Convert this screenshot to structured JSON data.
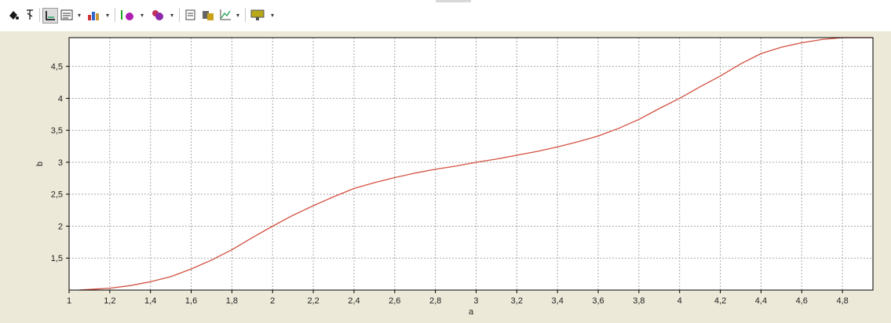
{
  "toolbar": {
    "icons": [
      "paint-bucket-icon",
      "marker-icon",
      "axes-icon",
      "legend-icon",
      "chart-type-icon",
      "point-marker-icon",
      "series-color-icon",
      "copy-icon",
      "paste-icon",
      "chart-options-icon",
      "export-icon"
    ]
  },
  "colors": {
    "plot_bg": "#ffffff",
    "panel_bg": "#ece9d8",
    "grid": "#a8a8a8",
    "line": "#d4503f",
    "frame": "#000000"
  },
  "chart_data": {
    "type": "line",
    "title": "",
    "xlabel": "a",
    "ylabel": "b",
    "xlim": [
      1,
      4.95
    ],
    "ylim": [
      1.0,
      4.95
    ],
    "grid": true,
    "x_ticks": [
      1,
      1.2,
      1.4,
      1.6,
      1.8,
      2,
      2.2,
      2.4,
      2.6,
      2.8,
      3,
      3.2,
      3.4,
      3.6,
      3.8,
      4,
      4.2,
      4.4,
      4.6,
      4.8
    ],
    "x_tick_labels": [
      "1",
      "1,2",
      "1,4",
      "1,6",
      "1,8",
      "2",
      "2,2",
      "2,4",
      "2,6",
      "2,8",
      "3",
      "3,2",
      "3,4",
      "3,6",
      "3,8",
      "4",
      "4,2",
      "4,4",
      "4,6",
      "4,8"
    ],
    "y_ticks": [
      1.5,
      2,
      2.5,
      3,
      3.5,
      4,
      4.5
    ],
    "y_tick_labels": [
      "1,5",
      "2",
      "2,5",
      "3",
      "3,5",
      "4",
      "4,5"
    ],
    "series": [
      {
        "color": "#d4503f",
        "x": [
          1.05,
          1.1,
          1.2,
          1.3,
          1.4,
          1.5,
          1.6,
          1.7,
          1.8,
          1.9,
          2.0,
          2.1,
          2.2,
          2.3,
          2.4,
          2.5,
          2.6,
          2.7,
          2.8,
          2.9,
          3.0,
          3.1,
          3.2,
          3.3,
          3.4,
          3.5,
          3.6,
          3.7,
          3.8,
          3.9,
          4.0,
          4.1,
          4.2,
          4.3,
          4.4,
          4.5,
          4.6,
          4.7,
          4.8,
          4.9,
          4.95
        ],
        "y": [
          1.0,
          1.01,
          1.03,
          1.07,
          1.13,
          1.21,
          1.33,
          1.47,
          1.63,
          1.82,
          2.0,
          2.17,
          2.32,
          2.46,
          2.59,
          2.68,
          2.76,
          2.83,
          2.89,
          2.94,
          3.0,
          3.05,
          3.11,
          3.17,
          3.24,
          3.32,
          3.41,
          3.53,
          3.67,
          3.84,
          4.0,
          4.18,
          4.35,
          4.54,
          4.7,
          4.8,
          4.87,
          4.92,
          4.95,
          4.95,
          4.95
        ]
      }
    ]
  }
}
